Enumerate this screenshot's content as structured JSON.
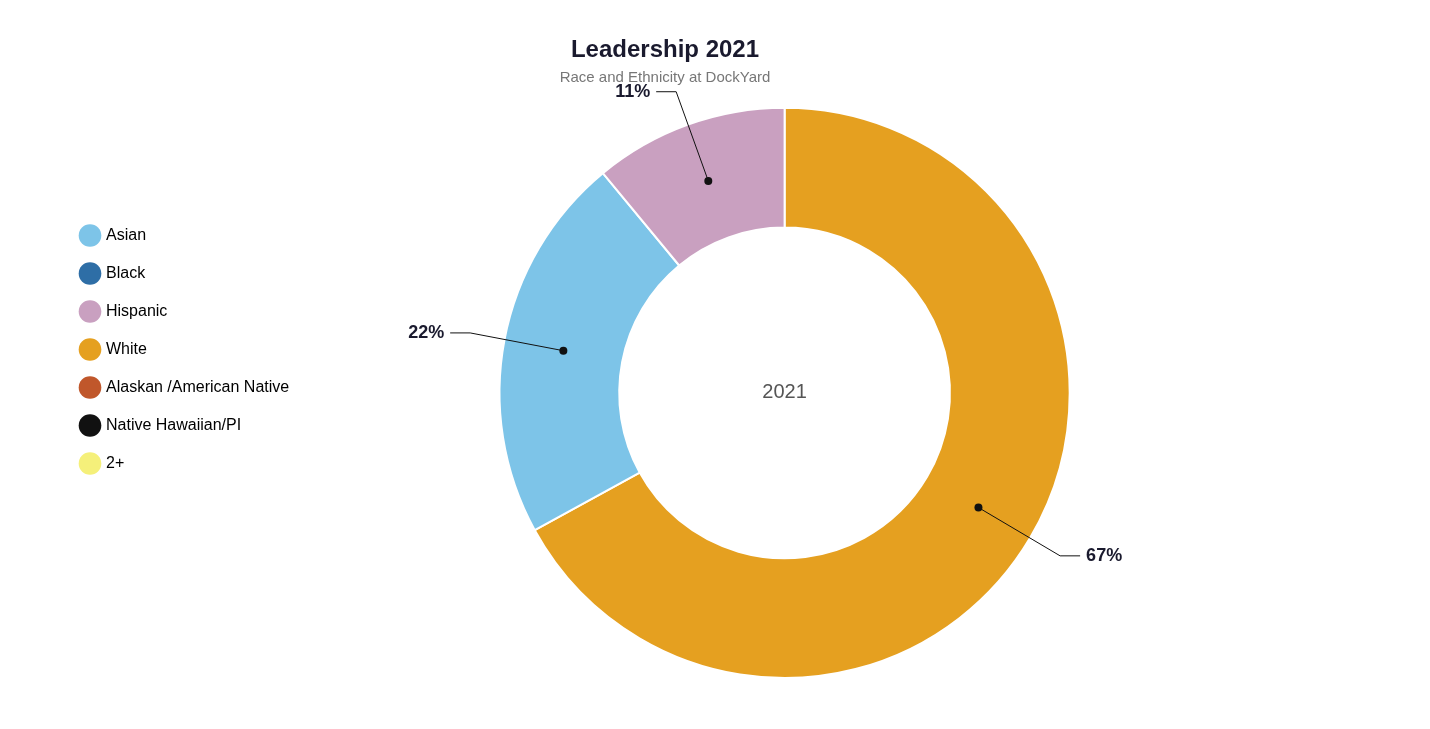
{
  "chart_data": {
    "type": "doughnut",
    "title": "Leadership 2021",
    "subtitle": "Race and Ethnicity at DockYard",
    "center_label": "2021",
    "categories": [
      "White",
      "Asian",
      "Hispanic"
    ],
    "values": [
      67,
      22,
      11
    ],
    "value_labels": [
      "67%",
      "22%",
      "11%"
    ],
    "colors": [
      "#E5A020",
      "#7DC4E8",
      "#C9A0C0"
    ],
    "data_labels": true,
    "legend": "left",
    "legend_entries": [
      {
        "name": "Asian",
        "color": "#7DC4E8"
      },
      {
        "name": "Black",
        "color": "#2E6EA6"
      },
      {
        "name": "Hispanic",
        "color": "#C9A0C0"
      },
      {
        "name": "White",
        "color": "#E5A020"
      },
      {
        "name": "Alaskan /American Native",
        "color": "#C0572B"
      },
      {
        "name": "Native Hawaiian/PI",
        "color": "#111111"
      },
      {
        "name": "2+",
        "color": "#F5F07A"
      }
    ]
  }
}
